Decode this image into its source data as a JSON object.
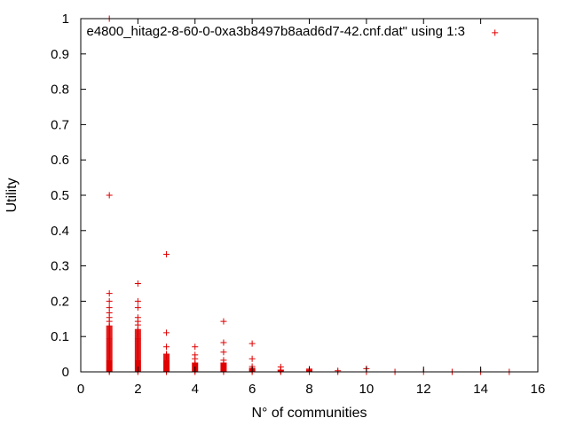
{
  "chart_data": {
    "type": "scatter",
    "title": "",
    "xlabel": "N° of communities",
    "ylabel": "Utility",
    "xlim": [
      0,
      16
    ],
    "ylim": [
      0,
      1
    ],
    "x_ticks": [
      "0",
      "2",
      "4",
      "6",
      "8",
      "10",
      "12",
      "14",
      "16"
    ],
    "y_ticks": [
      "0",
      "0.1",
      "0.2",
      "0.3",
      "0.4",
      "0.5",
      "0.6",
      "0.7",
      "0.8",
      "0.9",
      "1"
    ],
    "grid": false,
    "legend_position": "top-right",
    "marker": "plus",
    "series": [
      {
        "name": "e4800_hitag2-8-60-0-0xa3b8497b8aad6d7-42.cnf.dat\" using 1:3",
        "color": "#e00000",
        "dense_columns": [
          {
            "x": 1,
            "y_from": 0.0,
            "y_to": 0.13
          },
          {
            "x": 2,
            "y_from": 0.0,
            "y_to": 0.12
          },
          {
            "x": 3,
            "y_from": 0.0,
            "y_to": 0.05
          },
          {
            "x": 4,
            "y_from": 0.0,
            "y_to": 0.025
          },
          {
            "x": 5,
            "y_from": 0.0,
            "y_to": 0.025
          },
          {
            "x": 6,
            "y_from": 0.0,
            "y_to": 0.01
          },
          {
            "x": 7,
            "y_from": 0.0,
            "y_to": 0.006
          },
          {
            "x": 8,
            "y_from": 0.0,
            "y_to": 0.005
          }
        ],
        "points": [
          {
            "x": 1,
            "y": 1.0
          },
          {
            "x": 1,
            "y": 0.5
          },
          {
            "x": 1,
            "y": 0.222
          },
          {
            "x": 1,
            "y": 0.2
          },
          {
            "x": 1,
            "y": 0.182
          },
          {
            "x": 1,
            "y": 0.167
          },
          {
            "x": 1,
            "y": 0.154
          },
          {
            "x": 1,
            "y": 0.143
          },
          {
            "x": 2,
            "y": 0.25
          },
          {
            "x": 2,
            "y": 0.2
          },
          {
            "x": 2,
            "y": 0.182
          },
          {
            "x": 2,
            "y": 0.154
          },
          {
            "x": 2,
            "y": 0.143
          },
          {
            "x": 2,
            "y": 0.133
          },
          {
            "x": 3,
            "y": 0.333
          },
          {
            "x": 3,
            "y": 0.111
          },
          {
            "x": 3,
            "y": 0.071
          },
          {
            "x": 3,
            "y": 0.05
          },
          {
            "x": 4,
            "y": 0.071
          },
          {
            "x": 4,
            "y": 0.048
          },
          {
            "x": 4,
            "y": 0.037
          },
          {
            "x": 5,
            "y": 0.143
          },
          {
            "x": 5,
            "y": 0.083
          },
          {
            "x": 5,
            "y": 0.056
          },
          {
            "x": 5,
            "y": 0.033
          },
          {
            "x": 6,
            "y": 0.08
          },
          {
            "x": 6,
            "y": 0.037
          },
          {
            "x": 6,
            "y": 0.015
          },
          {
            "x": 7,
            "y": 0.014
          },
          {
            "x": 7,
            "y": 0.005
          },
          {
            "x": 8,
            "y": 0.008
          },
          {
            "x": 9,
            "y": 0.003
          },
          {
            "x": 9,
            "y": 0.0
          },
          {
            "x": 10,
            "y": 0.009
          },
          {
            "x": 10,
            "y": 0.0
          },
          {
            "x": 11,
            "y": 0.0
          },
          {
            "x": 12,
            "y": 0.0
          },
          {
            "x": 13,
            "y": 0.0
          },
          {
            "x": 14,
            "y": 0.0
          },
          {
            "x": 15,
            "y": 0.0
          }
        ]
      }
    ]
  }
}
